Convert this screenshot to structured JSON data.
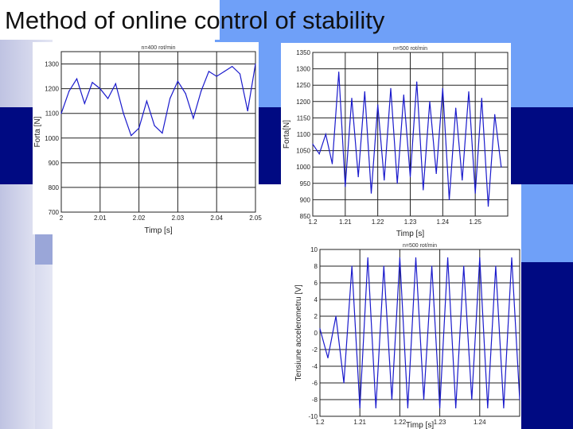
{
  "slide": {
    "title": "Method of online control of stability"
  },
  "colors": {
    "navy": "#000a82",
    "light_blue": "#6fa0f8",
    "series": "#1a1acc"
  },
  "chart_data": [
    {
      "type": "line",
      "title": "n=400 rot/min",
      "xlabel": "Timp [s]",
      "ylabel": "Forta [N]",
      "xlim": [
        2.0,
        2.05
      ],
      "ylim": [
        700,
        1350
      ],
      "xticks": [
        "2",
        "2.01",
        "2.02",
        "2.03",
        "2.04",
        "2.05"
      ],
      "yticks": [
        "700",
        "800",
        "900",
        "1000",
        "1100",
        "1200",
        "1300"
      ],
      "grid": true,
      "series": [
        {
          "x": [
            2.0,
            2.002,
            2.004,
            2.006,
            2.008,
            2.01,
            2.012,
            2.014,
            2.016,
            2.018,
            2.02,
            2.022,
            2.024,
            2.026,
            2.028,
            2.03,
            2.032,
            2.034,
            2.036,
            2.038,
            2.04,
            2.042,
            2.044,
            2.046,
            2.048,
            2.05
          ],
          "values": [
            1100,
            1190,
            1240,
            1140,
            1225,
            1200,
            1160,
            1220,
            1100,
            1010,
            1040,
            1150,
            1050,
            1020,
            1160,
            1230,
            1180,
            1080,
            1190,
            1270,
            1250,
            1270,
            1290,
            1260,
            1110,
            1300
          ]
        }
      ]
    },
    {
      "type": "line",
      "title": "n=500 rot/min",
      "xlabel": "Timp [s]",
      "ylabel": "Forta[N]",
      "xlim": [
        1.2,
        1.26
      ],
      "ylim": [
        850,
        1350
      ],
      "xticks": [
        "1.2",
        "1.21",
        "1.22",
        "1.23",
        "1.24",
        "1.25"
      ],
      "yticks": [
        "850",
        "900",
        "950",
        "1000",
        "1050",
        "1100",
        "1150",
        "1200",
        "1250",
        "1300",
        "1350"
      ],
      "grid": true,
      "series": [
        {
          "x": [
            1.2,
            1.202,
            1.204,
            1.206,
            1.208,
            1.21,
            1.212,
            1.214,
            1.216,
            1.218,
            1.22,
            1.222,
            1.224,
            1.226,
            1.228,
            1.23,
            1.232,
            1.234,
            1.236,
            1.238,
            1.24,
            1.242,
            1.244,
            1.246,
            1.248,
            1.25,
            1.252,
            1.254,
            1.256,
            1.258
          ],
          "values": [
            1070,
            1040,
            1100,
            1010,
            1290,
            940,
            1210,
            970,
            1230,
            920,
            1190,
            960,
            1240,
            950,
            1220,
            970,
            1260,
            930,
            1200,
            980,
            1240,
            900,
            1180,
            960,
            1230,
            920,
            1210,
            880,
            1160,
            1000
          ]
        }
      ]
    },
    {
      "type": "line",
      "title": "n=500 rot/min",
      "xlabel": "Timp [s]",
      "ylabel": "Tensiune accelerometru [V]",
      "xlim": [
        1.2,
        1.25
      ],
      "ylim": [
        -10,
        10
      ],
      "xticks": [
        "1.2",
        "1.21",
        "1.22",
        "1.23",
        "1.24"
      ],
      "yticks": [
        "-10",
        "-8",
        "-6",
        "-4",
        "-2",
        "0",
        "2",
        "4",
        "6",
        "8",
        "10"
      ],
      "grid": true,
      "series": [
        {
          "x": [
            1.2,
            1.202,
            1.204,
            1.206,
            1.208,
            1.21,
            1.212,
            1.214,
            1.216,
            1.218,
            1.22,
            1.222,
            1.224,
            1.226,
            1.228,
            1.23,
            1.232,
            1.234,
            1.236,
            1.238,
            1.24,
            1.242,
            1.244,
            1.246,
            1.248,
            1.25
          ],
          "values": [
            0.5,
            -3,
            2,
            -6,
            8,
            -9,
            9,
            -9,
            8,
            -8,
            9,
            -9,
            9,
            -8,
            8,
            -9,
            9,
            -9,
            8,
            -8,
            9,
            -9,
            8,
            -9,
            9,
            -8
          ]
        }
      ]
    }
  ]
}
